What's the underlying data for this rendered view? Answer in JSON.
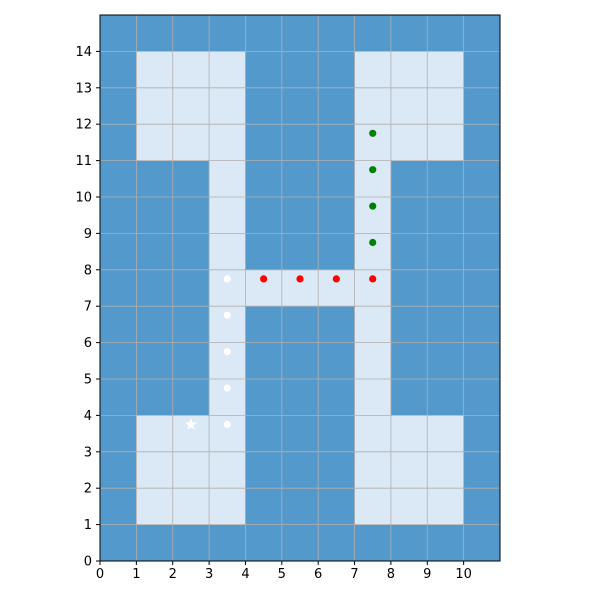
{
  "chart_data": {
    "type": "heatmap",
    "title": "",
    "xlabel": "",
    "ylabel": "",
    "xlim": [
      0,
      11
    ],
    "ylim": [
      0,
      15
    ],
    "xticks": [
      0,
      1,
      2,
      3,
      4,
      5,
      6,
      7,
      8,
      9,
      10
    ],
    "yticks": [
      0,
      1,
      2,
      3,
      4,
      5,
      6,
      7,
      8,
      9,
      10,
      11,
      12,
      13,
      14
    ],
    "grid": true,
    "colors": {
      "wall": "#5499cb",
      "floor": "#dbe8f5",
      "grid": "#b0b0b0",
      "white_path": "#ffffff",
      "red_path": "#ff0000",
      "green_path": "#008000",
      "start_marker": "#ffffff"
    },
    "floor_cells": [
      [
        1,
        13
      ],
      [
        2,
        13
      ],
      [
        3,
        13
      ],
      [
        7,
        13
      ],
      [
        8,
        13
      ],
      [
        9,
        13
      ],
      [
        1,
        12
      ],
      [
        2,
        12
      ],
      [
        3,
        12
      ],
      [
        7,
        12
      ],
      [
        8,
        12
      ],
      [
        9,
        12
      ],
      [
        1,
        11
      ],
      [
        2,
        11
      ],
      [
        3,
        11
      ],
      [
        7,
        11
      ],
      [
        8,
        11
      ],
      [
        9,
        11
      ],
      [
        3,
        10
      ],
      [
        7,
        10
      ],
      [
        3,
        9
      ],
      [
        7,
        9
      ],
      [
        3,
        8
      ],
      [
        7,
        8
      ],
      [
        3,
        7
      ],
      [
        4,
        7
      ],
      [
        5,
        7
      ],
      [
        6,
        7
      ],
      [
        7,
        7
      ],
      [
        3,
        6
      ],
      [
        7,
        6
      ],
      [
        3,
        5
      ],
      [
        7,
        5
      ],
      [
        3,
        4
      ],
      [
        7,
        4
      ],
      [
        1,
        3
      ],
      [
        2,
        3
      ],
      [
        3,
        3
      ],
      [
        7,
        3
      ],
      [
        8,
        3
      ],
      [
        9,
        3
      ],
      [
        1,
        2
      ],
      [
        2,
        2
      ],
      [
        3,
        2
      ],
      [
        7,
        2
      ],
      [
        8,
        2
      ],
      [
        9,
        2
      ],
      [
        1,
        1
      ],
      [
        2,
        1
      ],
      [
        3,
        1
      ],
      [
        7,
        1
      ],
      [
        8,
        1
      ],
      [
        9,
        1
      ]
    ],
    "series": [
      {
        "color": "white",
        "marker": "dot",
        "points": [
          [
            3.5,
            3.75
          ],
          [
            3.5,
            4.75
          ],
          [
            3.5,
            5.75
          ],
          [
            3.5,
            6.75
          ],
          [
            3.5,
            7.75
          ]
        ]
      },
      {
        "color": "red",
        "marker": "dot",
        "points": [
          [
            4.5,
            7.75
          ],
          [
            5.5,
            7.75
          ],
          [
            6.5,
            7.75
          ],
          [
            7.5,
            7.75
          ]
        ]
      },
      {
        "color": "green",
        "marker": "dot",
        "points": [
          [
            7.5,
            8.75
          ],
          [
            7.5,
            9.75
          ],
          [
            7.5,
            10.75
          ],
          [
            7.5,
            11.75
          ]
        ]
      }
    ],
    "start": {
      "marker": "star",
      "x": 2.5,
      "y": 3.75
    }
  }
}
